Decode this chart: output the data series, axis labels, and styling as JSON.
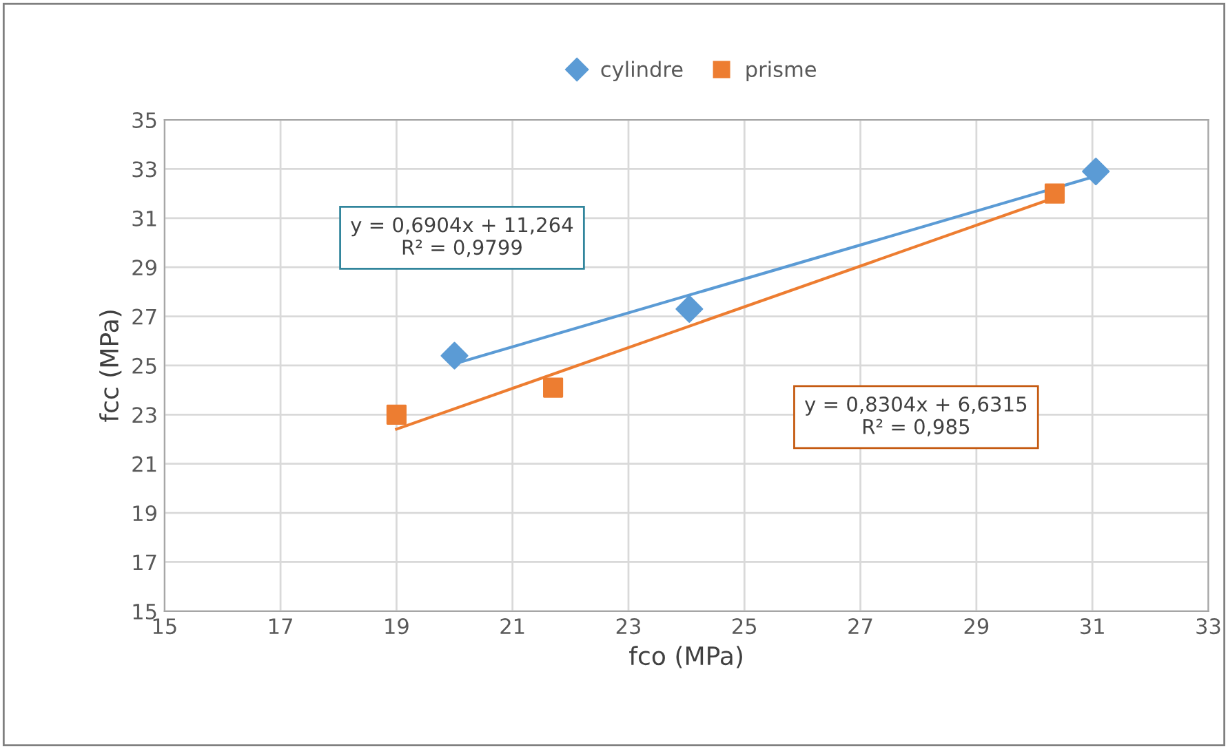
{
  "chart_data": {
    "type": "scatter",
    "xlabel": "fco (MPa)",
    "ylabel": "fcc (MPa)",
    "xlim": [
      15,
      33
    ],
    "ylim": [
      15,
      35
    ],
    "xticks": [
      15,
      17,
      19,
      21,
      23,
      25,
      27,
      29,
      31,
      33
    ],
    "yticks": [
      15,
      17,
      19,
      21,
      23,
      25,
      27,
      29,
      31,
      33,
      35
    ],
    "grid": true,
    "legend": "top",
    "series": [
      {
        "name": "cylindre",
        "color": "#5b9bd5",
        "marker": "diamond",
        "x": [
          20.0,
          24.05,
          31.06
        ],
        "values": [
          25.4,
          27.3,
          32.9
        ]
      },
      {
        "name": "prisme",
        "color": "#ed7d31",
        "marker": "square",
        "x": [
          19.0,
          21.7,
          30.35
        ],
        "values": [
          23.0,
          24.1,
          32.0
        ]
      },
      {
        "type": "line",
        "color": "#5b9bd5",
        "marker": "none",
        "x": [
          20.0,
          31.06
        ],
        "values": [
          25.07,
          32.71
        ]
      },
      {
        "type": "line",
        "color": "#ed7d31",
        "marker": "none",
        "x": [
          19.0,
          30.35
        ],
        "values": [
          22.41,
          31.83
        ]
      }
    ],
    "annotations": [
      "y = 0,6904x + 11,264\nR² = 0,9799",
      "y = 0,8304x + 6,6315\nR² = 0,985"
    ]
  }
}
